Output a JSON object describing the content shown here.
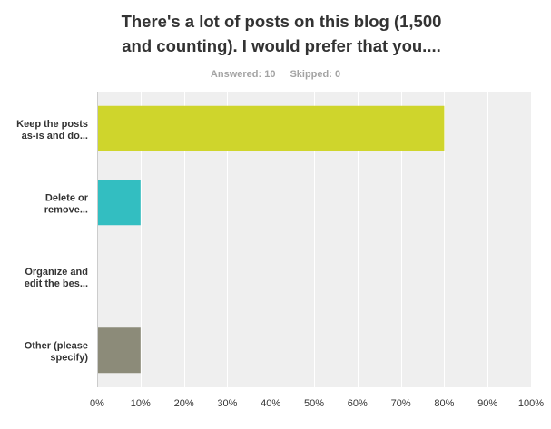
{
  "title_lines": [
    "There's a lot of posts on this blog (1,500",
    "and counting). I would prefer that you...."
  ],
  "stats": {
    "answered": "Answered: 10",
    "skipped": "Skipped: 0"
  },
  "colors": {
    "plot_background": "#efefef",
    "grid": "#ffffff",
    "axis": "#cccccc"
  },
  "chart_data": {
    "type": "bar",
    "orientation": "horizontal",
    "categories": [
      [
        "Keep the posts",
        "as-is and do..."
      ],
      [
        "Delete or",
        "remove..."
      ],
      [
        "Organize and",
        "edit the bes..."
      ],
      [
        "Other (please",
        "specify)"
      ]
    ],
    "values": [
      80,
      10,
      0,
      10
    ],
    "bar_colors": [
      "#cfd52c",
      "#33bec1",
      "#e07a35",
      "#8c8b79"
    ],
    "xlim": [
      0,
      100
    ],
    "x_ticks": [
      0,
      10,
      20,
      30,
      40,
      50,
      60,
      70,
      80,
      90,
      100
    ],
    "x_tick_labels": [
      "0%",
      "10%",
      "20%",
      "30%",
      "40%",
      "50%",
      "60%",
      "70%",
      "80%",
      "90%",
      "100%"
    ],
    "grid": true
  }
}
